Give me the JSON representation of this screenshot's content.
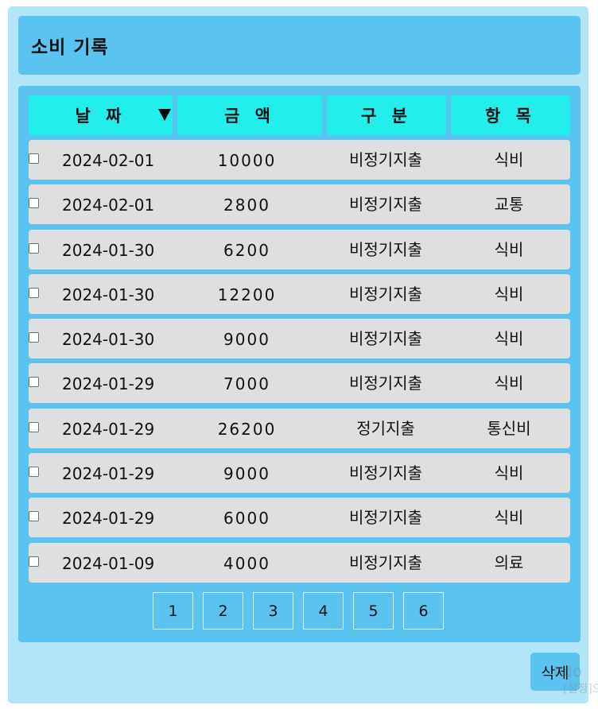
{
  "title": "소비 기록",
  "table": {
    "headers": {
      "date": "날 짜",
      "amount": "금 액",
      "type": "구 분",
      "item": "항 목"
    },
    "sort_column": "date",
    "sort_direction": "descending",
    "rows": [
      {
        "date": "2024-02-01",
        "amount": "10000",
        "type": "비정기지출",
        "item": "식비"
      },
      {
        "date": "2024-02-01",
        "amount": "2800",
        "type": "비정기지출",
        "item": "교통"
      },
      {
        "date": "2024-01-30",
        "amount": "6200",
        "type": "비정기지출",
        "item": "식비"
      },
      {
        "date": "2024-01-30",
        "amount": "12200",
        "type": "비정기지출",
        "item": "식비"
      },
      {
        "date": "2024-01-30",
        "amount": "9000",
        "type": "비정기지출",
        "item": "식비"
      },
      {
        "date": "2024-01-29",
        "amount": "7000",
        "type": "비정기지출",
        "item": "식비"
      },
      {
        "date": "2024-01-29",
        "amount": "26200",
        "type": "정기지출",
        "item": "통신비"
      },
      {
        "date": "2024-01-29",
        "amount": "9000",
        "type": "비정기지출",
        "item": "식비"
      },
      {
        "date": "2024-01-29",
        "amount": "6000",
        "type": "비정기지출",
        "item": "식비"
      },
      {
        "date": "2024-01-09",
        "amount": "4000",
        "type": "비정기지출",
        "item": "의료"
      }
    ]
  },
  "pagination": {
    "pages": [
      "1",
      "2",
      "3",
      "4",
      "5",
      "6"
    ]
  },
  "actions": {
    "delete_label": "삭제"
  },
  "watermark": {
    "line1": "ndo",
    "line2": "[설정]으"
  },
  "colors": {
    "page_background": "#b3e5f8",
    "panel": "#5bc3ef",
    "header_cell": "#22eeec",
    "row": "#e0dfe0"
  }
}
